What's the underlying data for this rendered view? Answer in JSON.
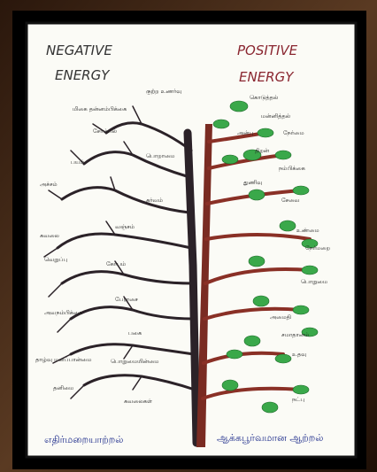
{
  "header": {
    "left_title": [
      "NEGATIVE",
      "ENERGY"
    ],
    "right_title": [
      "POSITIVE",
      "ENERGY"
    ]
  },
  "left_labels": [
    "குற்ற உணர்வு",
    "மிகை தன்னம்பிக்கை",
    "சோம்பல்",
    "பொறாமை",
    "பயம்",
    "அச்சம்",
    "கர்வம்",
    "கவலை",
    "வஞ்சம்",
    "வெறுப்பு",
    "கோபம்",
    "பேராசை",
    "அவநம்பிக்கை",
    "பகை",
    "தாழ்வு மனப்பான்மை",
    "பொறுமையின்மை",
    "தனிமை",
    "கவலைகள்"
  ],
  "right_labels": [
    "கொடுத்தல்",
    "மன்னித்தல்",
    "அன்பு",
    "நேர்மை",
    "திறன்",
    "நம்பிக்கை",
    "துணிவு",
    "சேவை",
    "உண்மை",
    "நேர்மறை",
    "பொறுமை",
    "அமைதி",
    "சமாதானம்",
    "உதவு",
    "நட்பு"
  ],
  "footer": {
    "left": "எதிர்மறையாற்றல்",
    "right": "ஆக்கபூர்வமான ஆற்றல்"
  }
}
